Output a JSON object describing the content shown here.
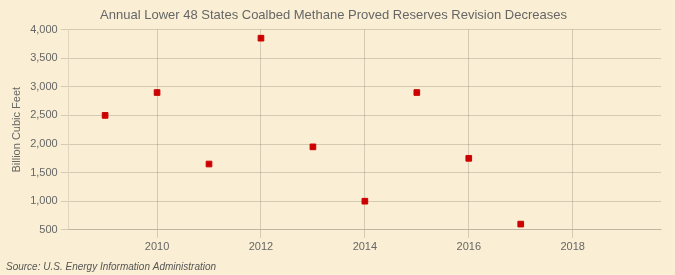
{
  "chart_data": {
    "type": "scatter",
    "title": "Annual Lower 48 States Coalbed Methane Proved Reserves Revision Decreases",
    "ylabel": "Billion Cubic Feet",
    "annotation": "Source: U.S. Energy Information Administration",
    "x": [
      2009,
      2010,
      2011,
      2012,
      2013,
      2014,
      2015,
      2016,
      2017
    ],
    "values": [
      2500,
      2900,
      1650,
      3850,
      1950,
      1000,
      2900,
      1750,
      600
    ],
    "color": "#cc0000",
    "marker": "square",
    "xlim": [
      2008.3,
      2019.7
    ],
    "ylim": [
      500,
      4000
    ],
    "xticks": [
      2010,
      2012,
      2014,
      2016,
      2018
    ],
    "yticks": [
      500,
      {
        "value": 1000,
        "label": "1,000"
      },
      {
        "value": 1500,
        "label": "1,500"
      },
      {
        "value": 2000,
        "label": "2,000"
      },
      {
        "value": 2500,
        "label": "2,500"
      },
      {
        "value": 3000,
        "label": "3,000"
      },
      {
        "value": 3500,
        "label": "3,500"
      },
      {
        "value": 4000,
        "label": "4,000"
      }
    ],
    "grid": true
  }
}
